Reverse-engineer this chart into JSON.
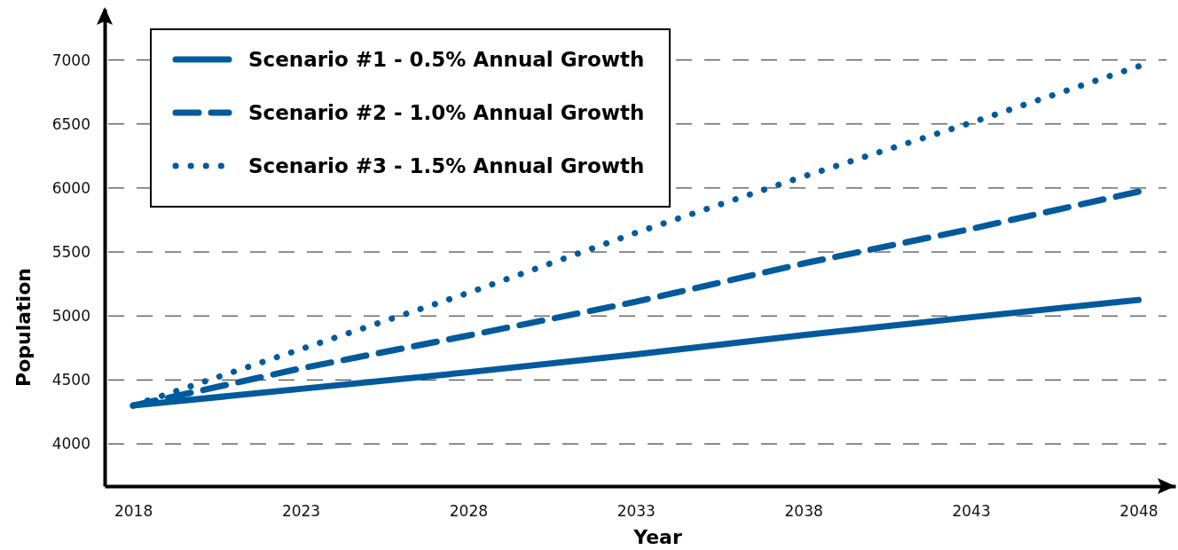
{
  "chart_data": {
    "type": "line",
    "xlabel": "Year",
    "ylabel": "Population",
    "x": [
      2018,
      2023,
      2028,
      2033,
      2038,
      2043,
      2048
    ],
    "xlim": [
      2017.15,
      2049.1
    ],
    "xticks": [
      2018,
      2023,
      2028,
      2033,
      2038,
      2043,
      2048
    ],
    "ylim": [
      3670,
      7400
    ],
    "yticks": [
      4000,
      4500,
      5000,
      5500,
      6000,
      6500,
      7000
    ],
    "grid": "y",
    "legend": "top left",
    "marker": "none",
    "series": [
      {
        "name": "Scenario #1 - 0.5% Annual Growth",
        "color": "#005a9c",
        "line_style": "solid",
        "values": [
          4300,
          4430,
          4560,
          4700,
          4850,
          4990,
          5125
        ]
      },
      {
        "name": "Scenario #2 - 1.0% Annual Growth",
        "color": "#005a9c",
        "line_style": "dashed",
        "values": [
          4300,
          4590,
          4847,
          5111,
          5410,
          5680,
          5972
        ]
      },
      {
        "name": "Scenario #3 - 1.5% Annual Growth",
        "color": "#005a9c",
        "line_style": "dotted",
        "values": [
          4300,
          4740,
          5180,
          5650,
          6090,
          6510,
          6951
        ]
      }
    ]
  }
}
